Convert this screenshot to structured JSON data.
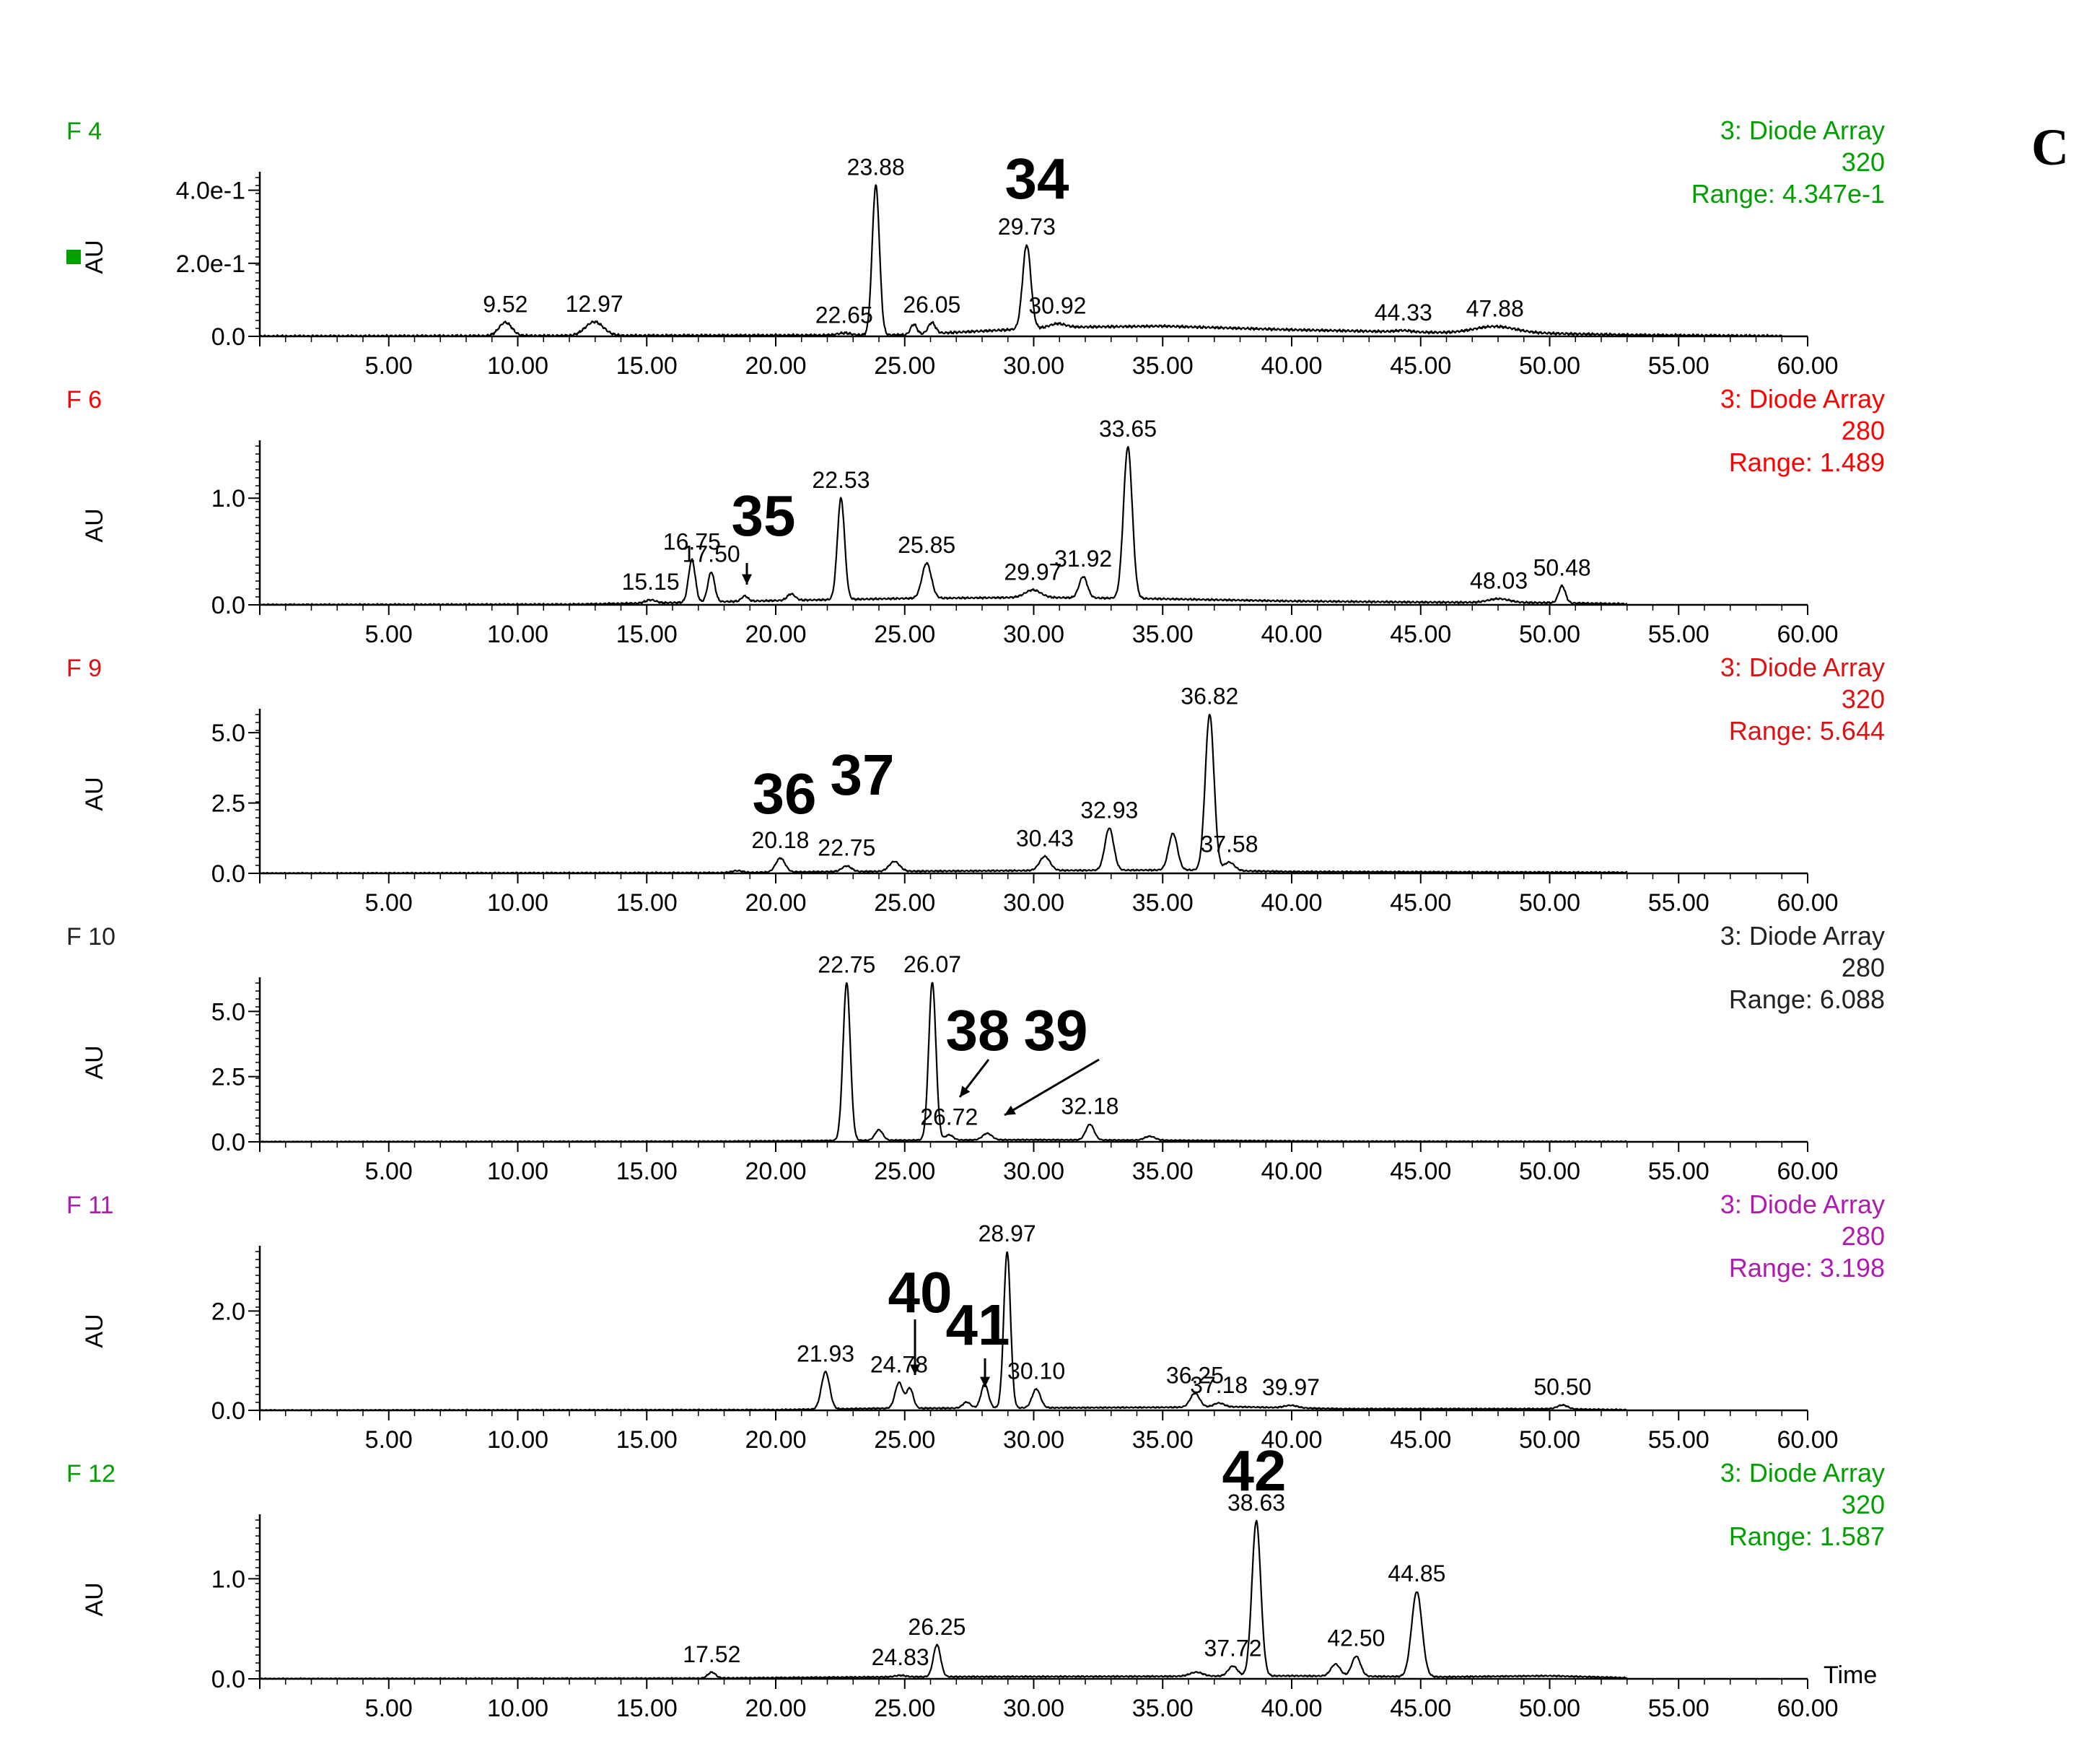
{
  "figure_letter": "C",
  "chart_data": [
    {
      "type": "line",
      "fraction": "F 4",
      "detector": "3: Diode Array",
      "wavelength": "320",
      "range": "Range: 4.347e-1",
      "ylabel": "AU",
      "color": "#00a000",
      "marker": true,
      "xlim": [
        0,
        60
      ],
      "ylim": [
        0,
        0.4347
      ],
      "yticks": [
        {
          "v": 0.4,
          "label": "4.0e-1"
        },
        {
          "v": 0.2,
          "label": "2.0e-1"
        },
        {
          "v": 0,
          "label": "0.0"
        }
      ],
      "trace_end": 59,
      "noise": 0.004,
      "baseline": [
        [
          0,
          0
        ],
        [
          22,
          0.003
        ],
        [
          25,
          0.004
        ],
        [
          31,
          0.025
        ],
        [
          35,
          0.028
        ],
        [
          40,
          0.018
        ],
        [
          46,
          0.01
        ],
        [
          50,
          0.008
        ],
        [
          53,
          0.004
        ],
        [
          60,
          0
        ]
      ],
      "peaks": [
        {
          "t": 9.52,
          "h": 0.037,
          "w": 0.25,
          "label": "9.52"
        },
        {
          "t": 12.97,
          "h": 0.038,
          "w": 0.35,
          "label": "12.97"
        },
        {
          "t": 22.65,
          "h": 0.006,
          "w": 0.25,
          "label": "22.65"
        },
        {
          "t": 23.88,
          "h": 0.41,
          "w": 0.14,
          "label": "23.88"
        },
        {
          "t": 25.35,
          "h": 0.028,
          "w": 0.12
        },
        {
          "t": 26.05,
          "h": 0.03,
          "w": 0.14,
          "label": "26.05"
        },
        {
          "t": 29.73,
          "h": 0.23,
          "w": 0.16,
          "label": "29.73"
        },
        {
          "t": 30.92,
          "h": 0.01,
          "w": 0.3,
          "label": "30.92"
        },
        {
          "t": 44.33,
          "h": 0.004,
          "w": 0.3,
          "label": "44.33"
        },
        {
          "t": 47.88,
          "h": 0.018,
          "w": 0.8,
          "label": "47.88"
        }
      ],
      "compounds": [
        {
          "label": "34"
        }
      ]
    },
    {
      "type": "line",
      "fraction": "F 6",
      "detector": "3: Diode Array",
      "wavelength": "280",
      "range": "Range: 1.489",
      "ylabel": "AU",
      "color": "#ff0000",
      "xlim": [
        0,
        60
      ],
      "ylim": [
        0,
        1.489
      ],
      "yticks": [
        {
          "v": 1.0,
          "label": "1.0"
        },
        {
          "v": 0,
          "label": "0.0"
        }
      ],
      "trace_end": 53,
      "noise": 0.01,
      "baseline": [
        [
          0,
          0
        ],
        [
          12,
          0.004
        ],
        [
          16,
          0.02
        ],
        [
          20,
          0.04
        ],
        [
          25,
          0.06
        ],
        [
          30,
          0.07
        ],
        [
          34,
          0.06
        ],
        [
          40,
          0.035
        ],
        [
          45,
          0.025
        ],
        [
          50,
          0.02
        ],
        [
          53,
          0.008
        ],
        [
          60,
          0
        ]
      ],
      "peaks": [
        {
          "t": 15.15,
          "h": 0.03,
          "w": 0.2,
          "label": "15.15"
        },
        {
          "t": 16.75,
          "h": 0.4,
          "w": 0.13,
          "label": "16.75"
        },
        {
          "t": 17.5,
          "h": 0.28,
          "w": 0.13,
          "label": "17.50"
        },
        {
          "t": 18.8,
          "h": 0.05,
          "w": 0.12
        },
        {
          "t": 20.6,
          "h": 0.06,
          "w": 0.15
        },
        {
          "t": 22.53,
          "h": 0.95,
          "w": 0.14,
          "label": "22.53"
        },
        {
          "t": 25.85,
          "h": 0.33,
          "w": 0.18,
          "label": "25.85"
        },
        {
          "t": 29.97,
          "h": 0.07,
          "w": 0.3,
          "label": "29.97"
        },
        {
          "t": 31.92,
          "h": 0.2,
          "w": 0.16,
          "label": "31.92"
        },
        {
          "t": 33.65,
          "h": 1.42,
          "w": 0.17,
          "label": "33.65"
        },
        {
          "t": 48.03,
          "h": 0.035,
          "w": 0.4,
          "label": "48.03"
        },
        {
          "t": 50.48,
          "h": 0.16,
          "w": 0.13,
          "label": "50.48"
        }
      ],
      "compounds": [
        {
          "label": "35"
        }
      ]
    },
    {
      "type": "line",
      "fraction": "F 9",
      "detector": "3: Diode Array",
      "wavelength": "320",
      "range": "Range: 5.644",
      "ylabel": "AU",
      "color": "#dd1111",
      "xlim": [
        0,
        60
      ],
      "ylim": [
        0,
        5.644
      ],
      "yticks": [
        {
          "v": 5.0,
          "label": "5.0"
        },
        {
          "v": 2.5,
          "label": "2.5"
        },
        {
          "v": 0,
          "label": "0.0"
        }
      ],
      "trace_end": 53,
      "noise": 0.03,
      "baseline": [
        [
          0,
          0
        ],
        [
          18,
          0.02
        ],
        [
          22,
          0.06
        ],
        [
          30,
          0.1
        ],
        [
          36,
          0.12
        ],
        [
          40,
          0.06
        ],
        [
          53,
          0.03
        ],
        [
          60,
          0
        ]
      ],
      "peaks": [
        {
          "t": 18.5,
          "h": 0.07,
          "w": 0.2
        },
        {
          "t": 20.18,
          "h": 0.5,
          "w": 0.18,
          "label": "20.18"
        },
        {
          "t": 22.75,
          "h": 0.2,
          "w": 0.18,
          "label": "22.75"
        },
        {
          "t": 24.6,
          "h": 0.35,
          "w": 0.2
        },
        {
          "t": 30.43,
          "h": 0.5,
          "w": 0.2,
          "label": "30.43"
        },
        {
          "t": 32.93,
          "h": 1.5,
          "w": 0.17,
          "label": "32.93"
        },
        {
          "t": 35.4,
          "h": 1.3,
          "w": 0.17
        },
        {
          "t": 36.82,
          "h": 5.55,
          "w": 0.17,
          "label": "36.82"
        },
        {
          "t": 37.58,
          "h": 0.3,
          "w": 0.2,
          "label": "37.58"
        }
      ],
      "compounds": [
        {
          "label": "36"
        },
        {
          "label": "37"
        }
      ]
    },
    {
      "type": "line",
      "fraction": "F 10",
      "detector": "3: Diode Array",
      "wavelength": "280",
      "range": "Range: 6.088",
      "ylabel": "AU",
      "color": "#222222",
      "xlim": [
        0,
        60
      ],
      "ylim": [
        0,
        6.088
      ],
      "yticks": [
        {
          "v": 5.0,
          "label": "5.0"
        },
        {
          "v": 2.5,
          "label": "2.5"
        },
        {
          "v": 0,
          "label": "0.0"
        }
      ],
      "trace_end": 53,
      "noise": 0.025,
      "baseline": [
        [
          0,
          0
        ],
        [
          18,
          0.02
        ],
        [
          24,
          0.06
        ],
        [
          30,
          0.08
        ],
        [
          35,
          0.06
        ],
        [
          42,
          0.02
        ],
        [
          53,
          0.01
        ],
        [
          60,
          0
        ]
      ],
      "peaks": [
        {
          "t": 22.75,
          "h": 6.05,
          "w": 0.14,
          "label": "22.75"
        },
        {
          "t": 24.0,
          "h": 0.4,
          "w": 0.15
        },
        {
          "t": 26.07,
          "h": 6.05,
          "w": 0.14,
          "label": "26.07"
        },
        {
          "t": 26.72,
          "h": 0.2,
          "w": 0.15,
          "label": "26.72"
        },
        {
          "t": 28.2,
          "h": 0.25,
          "w": 0.18
        },
        {
          "t": 32.18,
          "h": 0.6,
          "w": 0.16,
          "label": "32.18"
        },
        {
          "t": 34.5,
          "h": 0.15,
          "w": 0.2
        }
      ],
      "compounds": [
        {
          "label": "38"
        },
        {
          "label": "39"
        }
      ]
    },
    {
      "type": "line",
      "fraction": "F 11",
      "detector": "3: Diode Array",
      "wavelength": "280",
      "range": "Range: 3.198",
      "ylabel": "AU",
      "color": "#b01ab0",
      "xlim": [
        0,
        60
      ],
      "ylim": [
        0,
        3.198
      ],
      "yticks": [
        {
          "v": 2.0,
          "label": "2.0"
        },
        {
          "v": 0,
          "label": "0.0"
        }
      ],
      "trace_end": 53,
      "noise": 0.015,
      "baseline": [
        [
          0,
          0
        ],
        [
          20,
          0.01
        ],
        [
          24,
          0.04
        ],
        [
          30,
          0.05
        ],
        [
          35,
          0.06
        ],
        [
          38,
          0.07
        ],
        [
          42,
          0.03
        ],
        [
          50,
          0.03
        ],
        [
          53,
          0.01
        ],
        [
          60,
          0
        ]
      ],
      "peaks": [
        {
          "t": 21.93,
          "h": 0.75,
          "w": 0.16,
          "label": "21.93"
        },
        {
          "t": 24.78,
          "h": 0.52,
          "w": 0.15,
          "label": "24.78"
        },
        {
          "t": 25.2,
          "h": 0.4,
          "w": 0.13
        },
        {
          "t": 27.4,
          "h": 0.12,
          "w": 0.15
        },
        {
          "t": 28.1,
          "h": 0.48,
          "w": 0.14
        },
        {
          "t": 28.97,
          "h": 3.15,
          "w": 0.13,
          "label": "28.97"
        },
        {
          "t": 30.1,
          "h": 0.38,
          "w": 0.16,
          "label": "30.10"
        },
        {
          "t": 36.25,
          "h": 0.28,
          "w": 0.18,
          "label": "36.25"
        },
        {
          "t": 37.18,
          "h": 0.08,
          "w": 0.2,
          "label": "37.18"
        },
        {
          "t": 39.97,
          "h": 0.05,
          "w": 0.25,
          "label": "39.97"
        },
        {
          "t": 50.5,
          "h": 0.08,
          "w": 0.2,
          "label": "50.50"
        }
      ],
      "compounds": [
        {
          "label": "40"
        },
        {
          "label": "41"
        }
      ]
    },
    {
      "type": "line",
      "fraction": "F 12",
      "detector": "3: Diode Array",
      "wavelength": "320",
      "range": "Range: 1.587",
      "ylabel": "AU",
      "xlabel": "Time",
      "color": "#00a000",
      "xlim": [
        0,
        60
      ],
      "ylim": [
        0,
        1.587
      ],
      "yticks": [
        {
          "v": 1.0,
          "label": "1.0"
        },
        {
          "v": 0,
          "label": "0.0"
        }
      ],
      "trace_end": 53,
      "noise": 0.008,
      "baseline": [
        [
          0,
          0
        ],
        [
          17,
          0.005
        ],
        [
          25,
          0.02
        ],
        [
          35,
          0.025
        ],
        [
          40,
          0.03
        ],
        [
          46,
          0.02
        ],
        [
          50,
          0.03
        ],
        [
          53,
          0.01
        ],
        [
          60,
          0
        ]
      ],
      "peaks": [
        {
          "t": 17.52,
          "h": 0.06,
          "w": 0.15,
          "label": "17.52"
        },
        {
          "t": 24.83,
          "h": 0.015,
          "w": 0.2,
          "label": "24.83"
        },
        {
          "t": 26.25,
          "h": 0.32,
          "w": 0.14,
          "label": "26.25"
        },
        {
          "t": 36.3,
          "h": 0.04,
          "w": 0.25
        },
        {
          "t": 37.72,
          "h": 0.1,
          "w": 0.18,
          "label": "37.72"
        },
        {
          "t": 38.63,
          "h": 1.55,
          "w": 0.17,
          "label": "38.63"
        },
        {
          "t": 41.7,
          "h": 0.12,
          "w": 0.18
        },
        {
          "t": 42.5,
          "h": 0.2,
          "w": 0.17,
          "label": "42.50"
        },
        {
          "t": 44.85,
          "h": 0.85,
          "w": 0.2,
          "label": "44.85"
        }
      ],
      "compounds": [
        {
          "label": "42"
        }
      ]
    }
  ]
}
